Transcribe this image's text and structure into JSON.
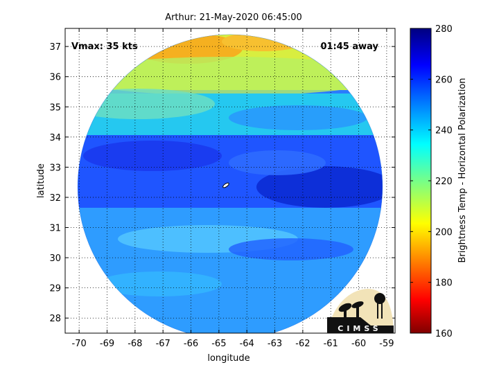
{
  "chart_data": {
    "type": "heatmap",
    "title": "Arthur: 21-May-2020 06:45:00",
    "xlabel": "longitude",
    "ylabel": "latitude",
    "xlim": [
      -70.5,
      -58.7
    ],
    "ylim": [
      27.5,
      37.6
    ],
    "xticks": [
      -70,
      -69,
      -68,
      -67,
      -66,
      -65,
      -64,
      -63,
      -62,
      -61,
      -60,
      -59
    ],
    "yticks": [
      28,
      29,
      30,
      31,
      32,
      33,
      34,
      35,
      36,
      37
    ],
    "grid": true,
    "annotations": {
      "vmax": "Vmax: 35 kts",
      "time_away": "01:45 away"
    },
    "center": {
      "lon": -64.75,
      "lat": 32.4
    },
    "swath_circle": {
      "center_lon": -64.6,
      "center_lat": 32.35,
      "radius_deg": 5.45
    },
    "colorbar": {
      "label": "Brightness Temp - Horizontal Polarization",
      "range": [
        160,
        280
      ],
      "ticks": [
        160,
        180,
        200,
        220,
        240,
        260,
        280
      ],
      "colormap": "jet"
    },
    "logo": "CIMSS"
  }
}
